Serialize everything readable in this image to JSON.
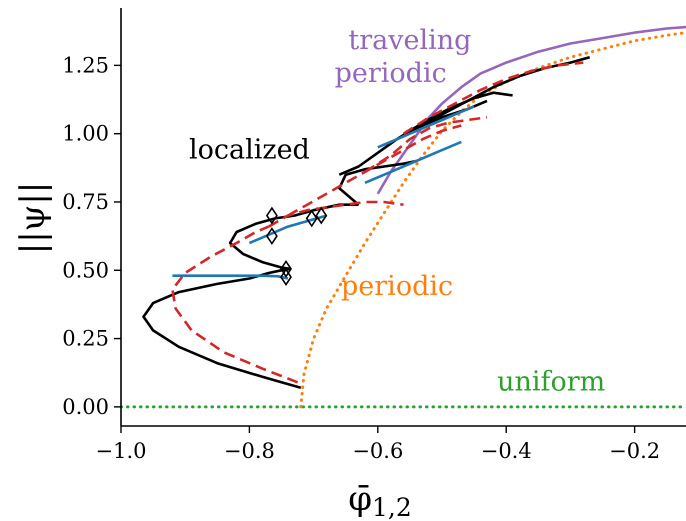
{
  "chart_data": {
    "type": "line",
    "xlabel": "φ̄",
    "xlabel_sub": "1,2",
    "ylabel": "||ψ||",
    "xlim": [
      -1.0,
      -0.12
    ],
    "ylim": [
      -0.07,
      1.46
    ],
    "xticks": [
      -1.0,
      -0.8,
      -0.6,
      -0.4,
      -0.2
    ],
    "xtick_labels": [
      "−1.0",
      "−0.8",
      "−0.6",
      "−0.4",
      "−0.2"
    ],
    "yticks": [
      0.0,
      0.25,
      0.5,
      0.75,
      1.0,
      1.25
    ],
    "ytick_labels": [
      "0.00",
      "0.25",
      "0.50",
      "0.75",
      "1.00",
      "1.25"
    ],
    "grid": false,
    "legend": "none",
    "annotations": [
      {
        "text": "localized",
        "x": -0.8,
        "y": 0.91,
        "color": "#000000"
      },
      {
        "text": "traveling",
        "x": -0.55,
        "y": 1.31,
        "color": "#9467bd"
      },
      {
        "text": "periodic",
        "x": -0.58,
        "y": 1.19,
        "color": "#9467bd"
      },
      {
        "text": "periodic",
        "x": -0.57,
        "y": 0.41,
        "color": "#ff7f0e"
      },
      {
        "text": "uniform",
        "x": -0.33,
        "y": 0.06,
        "color": "#2ca02c"
      }
    ],
    "colors": {
      "localized_stable": "#000000",
      "localized_blue": "#1f77b4",
      "unstable": "#d62728",
      "periodic": "#ff7f0e",
      "traveling": "#9467bd",
      "uniform": "#2ca02c"
    },
    "series": [
      {
        "style": "dotted",
        "color": "#2ca02c",
        "x": [
          -1.0,
          -0.9,
          -0.8,
          -0.72,
          -0.6,
          -0.5,
          -0.4,
          -0.3,
          -0.2,
          -0.12
        ],
        "y": [
          0,
          0,
          0,
          0,
          0,
          0,
          0,
          0,
          0,
          0
        ]
      },
      {
        "style": "dotted",
        "color": "#ff7f0e",
        "x": [
          -0.72,
          -0.715,
          -0.7,
          -0.68,
          -0.65,
          -0.62,
          -0.59,
          -0.56,
          -0.53,
          -0.5,
          -0.47,
          -0.44,
          -0.4,
          -0.35,
          -0.3,
          -0.25,
          -0.2,
          -0.15,
          -0.12
        ],
        "y": [
          0.0,
          0.12,
          0.25,
          0.36,
          0.48,
          0.6,
          0.71,
          0.82,
          0.92,
          1.01,
          1.08,
          1.14,
          1.19,
          1.24,
          1.28,
          1.31,
          1.34,
          1.36,
          1.37
        ]
      },
      {
        "style": "solid",
        "color": "#9467bd",
        "x": [
          -0.6,
          -0.58,
          -0.55,
          -0.52,
          -0.5,
          -0.47,
          -0.44,
          -0.4,
          -0.35,
          -0.3,
          -0.25,
          -0.2,
          -0.15,
          -0.12
        ],
        "y": [
          0.78,
          0.86,
          0.96,
          1.06,
          1.11,
          1.17,
          1.22,
          1.26,
          1.3,
          1.33,
          1.35,
          1.37,
          1.385,
          1.39
        ]
      },
      {
        "style": "solid",
        "color": "#000000",
        "x": [
          -0.72,
          -0.78,
          -0.85,
          -0.91,
          -0.95,
          -0.965,
          -0.95,
          -0.91,
          -0.85,
          -0.8,
          -0.77,
          -0.75,
          -0.735
        ],
        "y": [
          0.07,
          0.11,
          0.16,
          0.22,
          0.28,
          0.33,
          0.38,
          0.42,
          0.45,
          0.47,
          0.49,
          0.5,
          0.505
        ]
      },
      {
        "style": "solid",
        "color": "#000000",
        "x": [
          -0.735,
          -0.75,
          -0.78,
          -0.81,
          -0.83,
          -0.82,
          -0.79,
          -0.76,
          -0.73,
          -0.7,
          -0.66,
          -0.63
        ],
        "y": [
          0.505,
          0.51,
          0.53,
          0.56,
          0.6,
          0.64,
          0.67,
          0.69,
          0.7,
          0.72,
          0.74,
          0.74
        ]
      },
      {
        "style": "solid",
        "color": "#000000",
        "x": [
          -0.63,
          -0.66,
          -0.65,
          -0.62,
          -0.59,
          -0.56,
          -0.54
        ],
        "y": [
          0.74,
          0.8,
          0.85,
          0.87,
          0.88,
          0.89,
          0.9
        ]
      },
      {
        "style": "solid",
        "color": "#000000",
        "x": [
          -0.66,
          -0.63,
          -0.6,
          -0.57,
          -0.54,
          -0.5,
          -0.46,
          -0.43
        ],
        "y": [
          0.85,
          0.88,
          0.93,
          0.98,
          1.02,
          1.06,
          1.09,
          1.12
        ]
      },
      {
        "style": "solid",
        "color": "#000000",
        "x": [
          -0.57,
          -0.53,
          -0.49,
          -0.45,
          -0.42,
          -0.39
        ],
        "y": [
          0.98,
          1.04,
          1.09,
          1.13,
          1.15,
          1.14
        ]
      },
      {
        "style": "solid",
        "color": "#000000",
        "x": [
          -0.54,
          -0.5,
          -0.46,
          -0.42,
          -0.38,
          -0.34,
          -0.3,
          -0.27
        ],
        "y": [
          1.02,
          1.07,
          1.12,
          1.17,
          1.21,
          1.24,
          1.26,
          1.28
        ]
      },
      {
        "style": "solid",
        "color": "#1f77b4",
        "x": [
          -0.92,
          -0.87,
          -0.82,
          -0.78,
          -0.755,
          -0.74
        ],
        "y": [
          0.48,
          0.48,
          0.48,
          0.48,
          0.478,
          0.47
        ]
      },
      {
        "style": "solid",
        "color": "#1f77b4",
        "x": [
          -0.8,
          -0.77,
          -0.74,
          -0.71,
          -0.68
        ],
        "y": [
          0.6,
          0.63,
          0.66,
          0.68,
          0.7
        ]
      },
      {
        "style": "solid",
        "color": "#1f77b4",
        "x": [
          -0.62,
          -0.58,
          -0.54,
          -0.5,
          -0.47
        ],
        "y": [
          0.82,
          0.86,
          0.9,
          0.94,
          0.97
        ]
      },
      {
        "style": "solid",
        "color": "#1f77b4",
        "x": [
          -0.6,
          -0.56,
          -0.52,
          -0.48,
          -0.45
        ],
        "y": [
          0.95,
          0.99,
          1.03,
          1.07,
          1.1
        ]
      },
      {
        "style": "dashed",
        "color": "#d62728",
        "x": [
          -0.725,
          -0.78,
          -0.84,
          -0.89,
          -0.915,
          -0.92,
          -0.9,
          -0.86,
          -0.82,
          -0.79,
          -0.77
        ],
        "y": [
          0.09,
          0.14,
          0.2,
          0.28,
          0.36,
          0.43,
          0.49,
          0.55,
          0.6,
          0.64,
          0.66
        ]
      },
      {
        "style": "dashed",
        "color": "#d62728",
        "x": [
          -0.77,
          -0.74,
          -0.71,
          -0.68,
          -0.65,
          -0.62,
          -0.59,
          -0.56
        ],
        "y": [
          0.66,
          0.7,
          0.72,
          0.73,
          0.74,
          0.75,
          0.75,
          0.74
        ]
      },
      {
        "style": "dashed",
        "color": "#d62728",
        "x": [
          -0.74,
          -0.71,
          -0.68,
          -0.65,
          -0.62,
          -0.59,
          -0.56,
          -0.53,
          -0.5,
          -0.47
        ],
        "y": [
          0.7,
          0.74,
          0.78,
          0.82,
          0.86,
          0.9,
          0.94,
          0.98,
          1.01,
          1.03
        ]
      },
      {
        "style": "dashed",
        "color": "#d62728",
        "x": [
          -0.62,
          -0.58,
          -0.55,
          -0.52,
          -0.49,
          -0.46,
          -0.43
        ],
        "y": [
          0.86,
          0.92,
          0.98,
          1.02,
          1.04,
          1.05,
          1.06
        ]
      },
      {
        "style": "dashed",
        "color": "#d62728",
        "x": [
          -0.56,
          -0.52,
          -0.48,
          -0.44,
          -0.4,
          -0.36,
          -0.32,
          -0.28
        ],
        "y": [
          1.0,
          1.06,
          1.11,
          1.16,
          1.2,
          1.23,
          1.25,
          1.26
        ]
      }
    ],
    "markers": {
      "shape": "diamond",
      "x": [
        -0.765,
        -0.765,
        -0.743,
        -0.743,
        -0.703,
        -0.688
      ],
      "y": [
        0.7,
        0.625,
        0.505,
        0.475,
        0.69,
        0.7
      ]
    }
  }
}
